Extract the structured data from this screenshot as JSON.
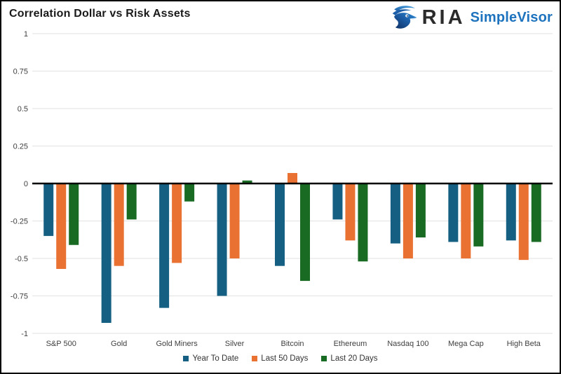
{
  "header": {
    "title": "Correlation Dollar vs Risk Assets",
    "brand": {
      "name": "RIA",
      "product": "SimpleVisor",
      "icon": "eagle-icon"
    }
  },
  "colors": {
    "series_blue": "#156082",
    "series_orange": "#E97132",
    "series_green": "#196B24",
    "gridline": "#E2E2E2",
    "zero_line": "#000000",
    "axis_text": "#3F3F3F",
    "brand_text": "#2B2B2B",
    "brand_blue": "#1E73BE"
  },
  "chart_data": {
    "type": "bar",
    "title": "Correlation Dollar vs Risk Assets",
    "categories": [
      "S&P 500",
      "Gold",
      "Gold Miners",
      "Silver",
      "Bitcoin",
      "Ethereum",
      "Nasdaq 100",
      "Mega Cap",
      "High Beta"
    ],
    "series": [
      {
        "name": "Year To Date",
        "color": "#156082",
        "values": [
          -0.35,
          -0.93,
          -0.83,
          -0.75,
          -0.55,
          -0.24,
          -0.4,
          -0.39,
          -0.38
        ]
      },
      {
        "name": "Last 50 Days",
        "color": "#E97132",
        "values": [
          -0.57,
          -0.55,
          -0.53,
          -0.5,
          0.07,
          -0.38,
          -0.5,
          -0.5,
          -0.51
        ]
      },
      {
        "name": "Last 20 Days",
        "color": "#196B24",
        "values": [
          -0.41,
          -0.24,
          -0.12,
          0.02,
          -0.65,
          -0.52,
          -0.36,
          -0.42,
          -0.39
        ]
      }
    ],
    "ylim": [
      -1,
      1
    ],
    "yticks": [
      1,
      0.75,
      0.5,
      0.25,
      0,
      -0.25,
      -0.5,
      -0.75,
      -1
    ],
    "ytick_labels": [
      "1",
      "0.75",
      "0.5",
      "0.25",
      "0",
      "-0.25",
      "-0.5",
      "-0.75",
      "-1"
    ],
    "grid": true,
    "legend_position": "bottom"
  }
}
